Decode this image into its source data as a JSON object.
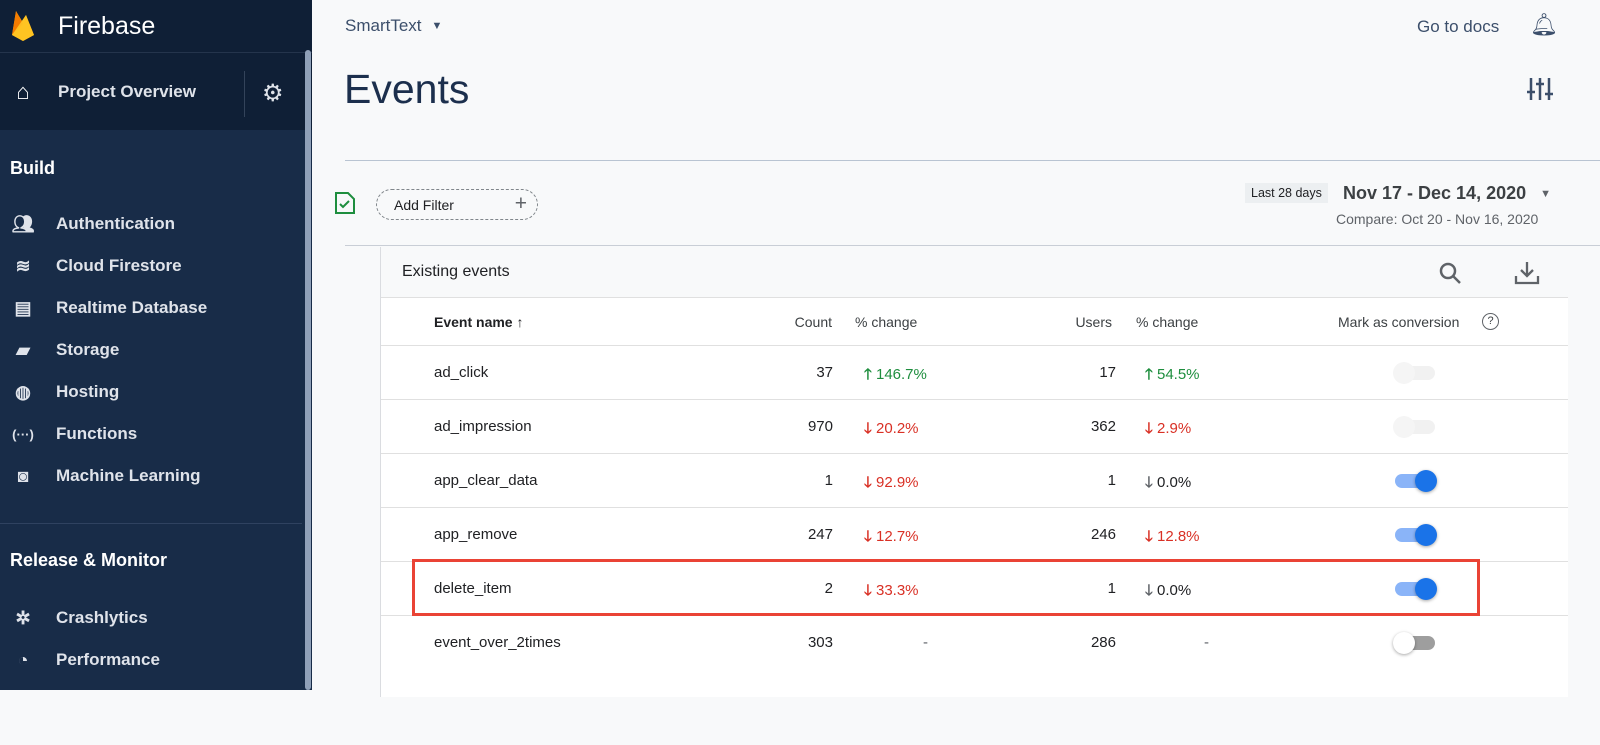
{
  "sidebar": {
    "brand": "Firebase",
    "project_overview": "Project Overview",
    "build_title": "Build",
    "build_items": [
      {
        "label": "Authentication",
        "icon": "people-icon"
      },
      {
        "label": "Cloud Firestore",
        "icon": "firestore-icon"
      },
      {
        "label": "Realtime Database",
        "icon": "database-icon"
      },
      {
        "label": "Storage",
        "icon": "storage-icon"
      },
      {
        "label": "Hosting",
        "icon": "globe-icon"
      },
      {
        "label": "Functions",
        "icon": "functions-icon"
      },
      {
        "label": "Machine Learning",
        "icon": "robot-icon"
      }
    ],
    "release_title": "Release & Monitor",
    "release_items": [
      {
        "label": "Crashlytics",
        "icon": "crashlytics-icon"
      },
      {
        "label": "Performance",
        "icon": "performance-icon"
      }
    ]
  },
  "header": {
    "project": "SmartText",
    "docs": "Go to docs",
    "title": "Events"
  },
  "filter": {
    "add_filter": "Add Filter",
    "range_badge": "Last 28 days",
    "range": "Nov 17 - Dec 14, 2020",
    "compare": "Compare: Oct 20 - Nov 16, 2020"
  },
  "table": {
    "title": "Existing events",
    "columns": {
      "name": "Event name",
      "count": "Count",
      "count_change": "% change",
      "users": "Users",
      "users_change": "% change",
      "conversion": "Mark as conversion"
    },
    "rows": [
      {
        "name": "ad_click",
        "count": "37",
        "count_change": "146.7%",
        "count_dir": "up",
        "users": "17",
        "users_change": "54.5%",
        "users_dir": "up",
        "conversion": "disabled-off"
      },
      {
        "name": "ad_impression",
        "count": "970",
        "count_change": "20.2%",
        "count_dir": "down",
        "users": "362",
        "users_change": "2.9%",
        "users_dir": "down",
        "conversion": "disabled-off"
      },
      {
        "name": "app_clear_data",
        "count": "1",
        "count_change": "92.9%",
        "count_dir": "down",
        "users": "1",
        "users_change": "0.0%",
        "users_dir": "neutral",
        "conversion": "on"
      },
      {
        "name": "app_remove",
        "count": "247",
        "count_change": "12.7%",
        "count_dir": "down",
        "users": "246",
        "users_change": "12.8%",
        "users_dir": "down",
        "conversion": "on"
      },
      {
        "name": "delete_item",
        "count": "2",
        "count_change": "33.3%",
        "count_dir": "down",
        "users": "1",
        "users_change": "0.0%",
        "users_dir": "neutral",
        "conversion": "on",
        "highlighted": true
      },
      {
        "name": "event_over_2times",
        "count": "303",
        "count_change": "-",
        "count_dir": "none",
        "users": "286",
        "users_change": "-",
        "users_dir": "none",
        "conversion": "off"
      }
    ]
  },
  "colors": {
    "up": "#1e8e3e",
    "down": "#d93025",
    "neutral": "#5f6368",
    "accent": "#1a73e8",
    "highlight": "#ea4335",
    "sidebar": "#182c48"
  }
}
